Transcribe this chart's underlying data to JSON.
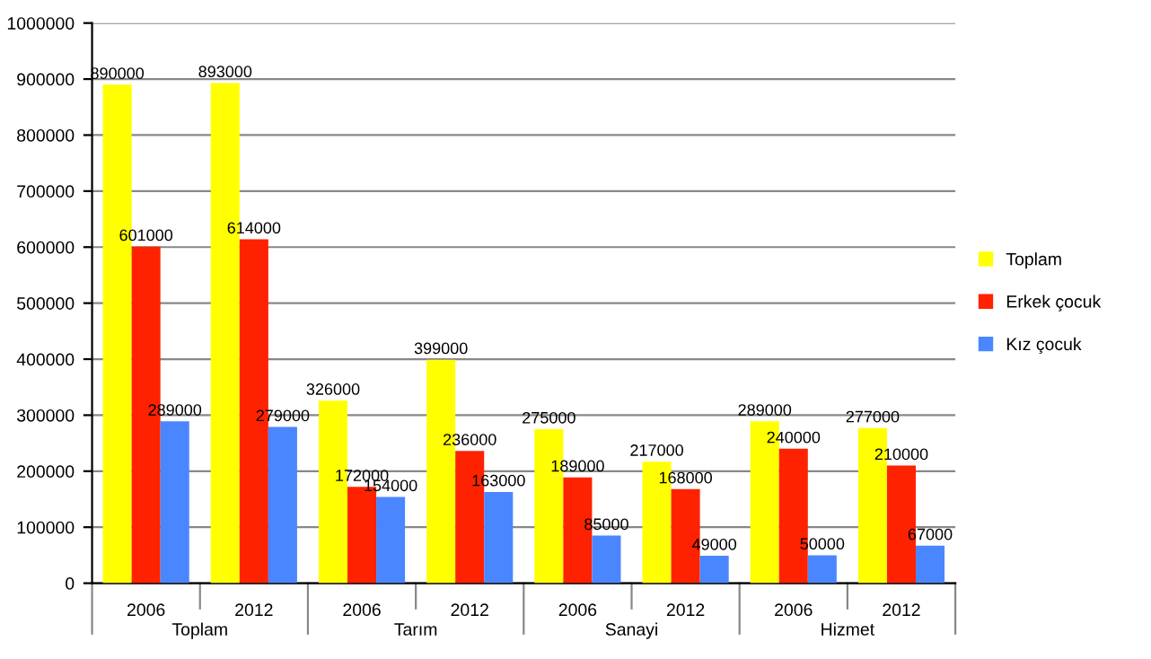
{
  "chart_data": {
    "type": "bar",
    "categories": [
      "2006",
      "2012",
      "2006",
      "2012",
      "2006",
      "2012",
      "2006",
      "2012"
    ],
    "annotations": [
      "Toplam",
      "Tarım",
      "Sanayi",
      "Hizmet"
    ],
    "series": [
      {
        "name": "Toplam",
        "color": "#ffff00",
        "values": [
          890000,
          893000,
          326000,
          399000,
          275000,
          217000,
          289000,
          277000
        ]
      },
      {
        "name": "Erkek çocuk",
        "color": "#ff2200",
        "values": [
          601000,
          614000,
          172000,
          236000,
          189000,
          168000,
          240000,
          210000
        ]
      },
      {
        "name": "Kız çocuk",
        "color": "#4a86ff",
        "values": [
          289000,
          279000,
          154000,
          163000,
          85000,
          49000,
          50000,
          67000
        ]
      }
    ],
    "ylim": [
      0,
      1000000
    ],
    "yticks": [
      0,
      100000,
      200000,
      300000,
      400000,
      500000,
      600000,
      700000,
      800000,
      900000,
      1000000
    ],
    "grid": "y",
    "legend": "right",
    "data_labels": true
  }
}
